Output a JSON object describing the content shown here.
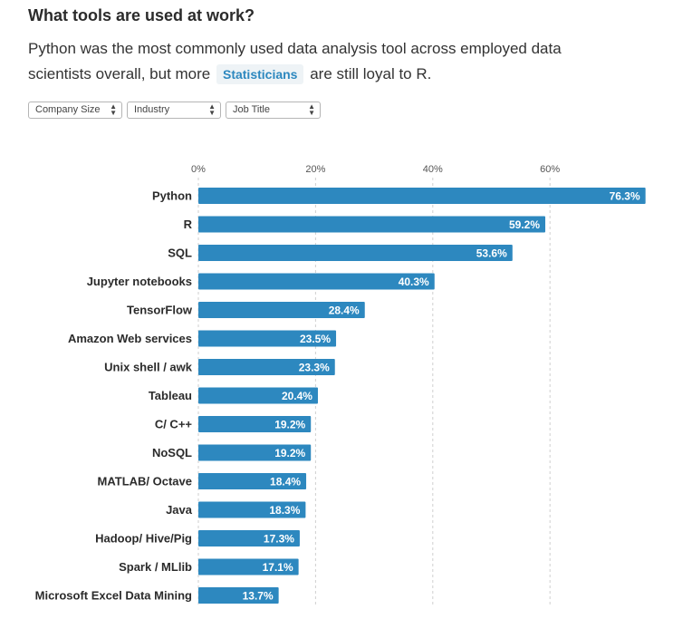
{
  "header": {
    "title": "What tools are used at work?",
    "subtitle_before": "Python was the most commonly used data analysis tool across employed data scientists overall, but more",
    "subtitle_highlight": "Statisticians",
    "subtitle_after": "are still loyal to R."
  },
  "filters": [
    {
      "label": "Company Size"
    },
    {
      "label": "Industry"
    },
    {
      "label": "Job Title"
    }
  ],
  "colors": {
    "bar": "#2d88bf",
    "grid": "#cfcfcf",
    "accent_text": "#2d88bf"
  },
  "chart_data": {
    "type": "bar",
    "orientation": "horizontal",
    "categories": [
      "Python",
      "R",
      "SQL",
      "Jupyter notebooks",
      "TensorFlow",
      "Amazon Web services",
      "Unix shell / awk",
      "Tableau",
      "C/ C++",
      "NoSQL",
      "MATLAB/ Octave",
      "Java",
      "Hadoop/ Hive/Pig",
      "Spark / MLlib",
      "Microsoft Excel Data Mining"
    ],
    "values": [
      76.3,
      59.2,
      53.6,
      40.3,
      28.4,
      23.5,
      23.3,
      20.4,
      19.2,
      19.2,
      18.4,
      18.3,
      17.3,
      17.1,
      13.7
    ],
    "value_labels": [
      "76.3%",
      "59.2%",
      "53.6%",
      "40.3%",
      "28.4%",
      "23.5%",
      "23.3%",
      "20.4%",
      "19.2%",
      "19.2%",
      "18.4%",
      "18.3%",
      "17.3%",
      "17.1%",
      "13.7%"
    ],
    "xticks": [
      0,
      20,
      40,
      60
    ],
    "xtick_labels": [
      "0%",
      "20%",
      "40%",
      "60%"
    ],
    "xlim": [
      0,
      80
    ],
    "grid": true,
    "grid_style": "dashed-vertical",
    "axis_position": "top"
  }
}
